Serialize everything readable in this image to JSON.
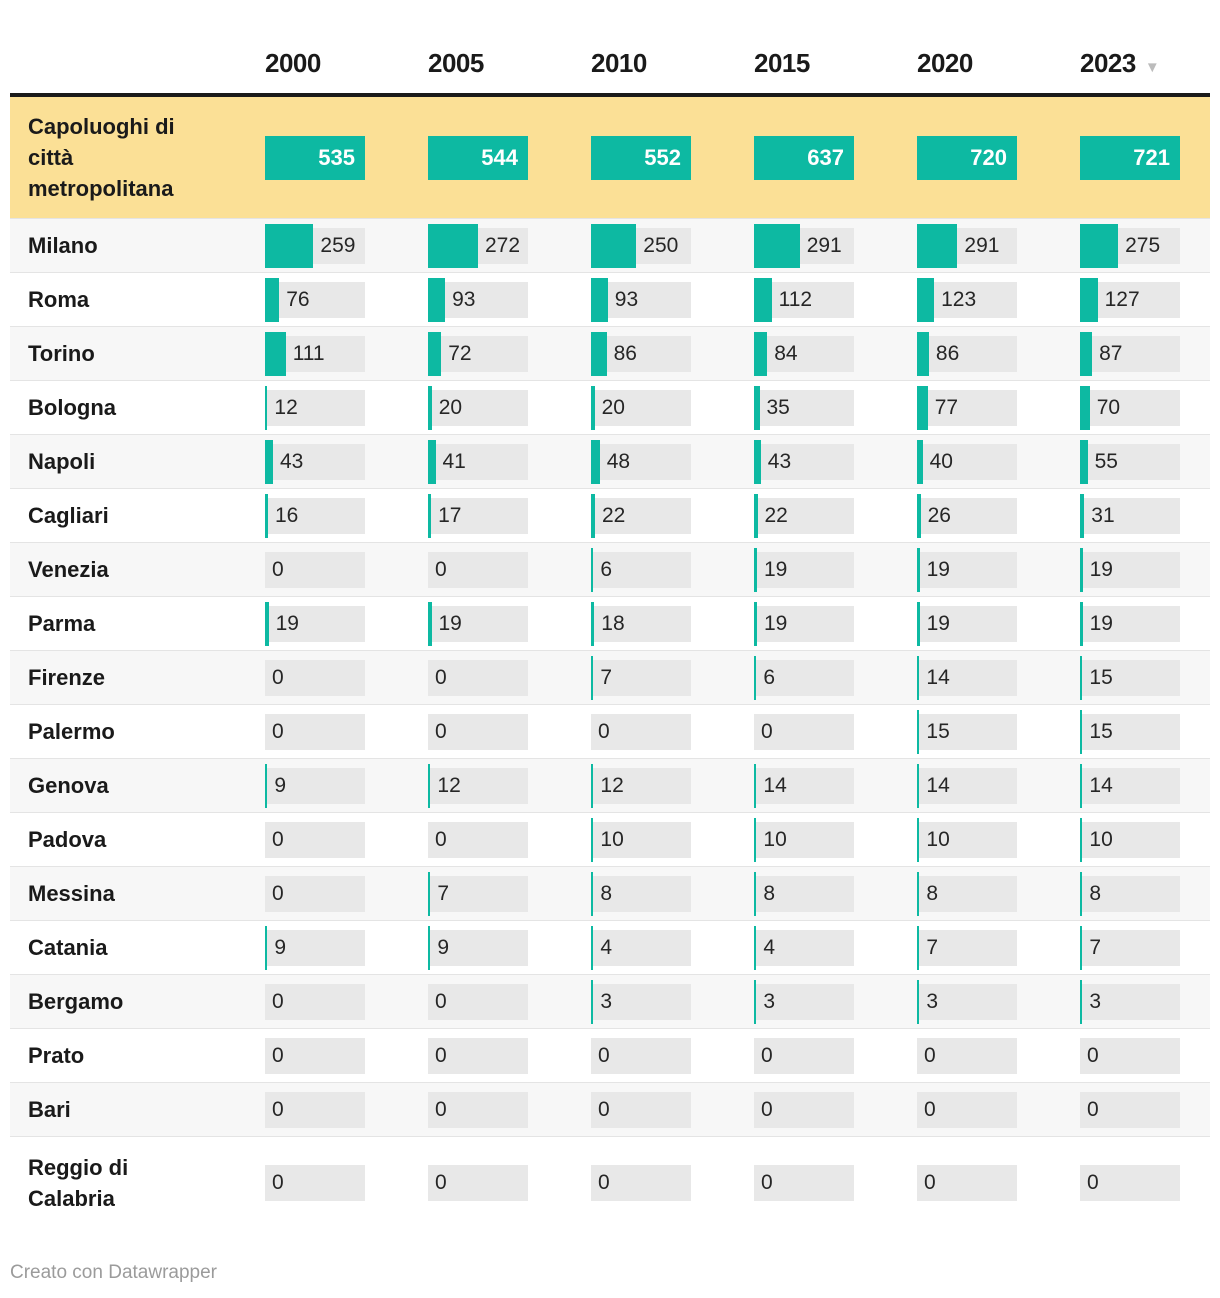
{
  "header": {
    "sort_icon": "▼",
    "sorted_column": "2023"
  },
  "chart_data": {
    "type": "table",
    "categories": [
      "2000",
      "2005",
      "2010",
      "2015",
      "2020",
      "2023"
    ],
    "bar_scaling": "per column, bar length relative to column max (total row value)",
    "legend_position": "none",
    "total": {
      "label": "Capoluoghi di città metropolitana",
      "values": [
        535,
        544,
        552,
        637,
        720,
        721
      ]
    },
    "series": [
      {
        "name": "Milano",
        "values": [
          259,
          272,
          250,
          291,
          291,
          275
        ]
      },
      {
        "name": "Roma",
        "values": [
          76,
          93,
          93,
          112,
          123,
          127
        ]
      },
      {
        "name": "Torino",
        "values": [
          111,
          72,
          86,
          84,
          86,
          87
        ]
      },
      {
        "name": "Bologna",
        "values": [
          12,
          20,
          20,
          35,
          77,
          70
        ]
      },
      {
        "name": "Napoli",
        "values": [
          43,
          41,
          48,
          43,
          40,
          55
        ]
      },
      {
        "name": "Cagliari",
        "values": [
          16,
          17,
          22,
          22,
          26,
          31
        ]
      },
      {
        "name": "Venezia",
        "values": [
          0,
          0,
          6,
          19,
          19,
          19
        ]
      },
      {
        "name": "Parma",
        "values": [
          19,
          19,
          18,
          19,
          19,
          19
        ]
      },
      {
        "name": "Firenze",
        "values": [
          0,
          0,
          7,
          6,
          14,
          15
        ]
      },
      {
        "name": "Palermo",
        "values": [
          0,
          0,
          0,
          0,
          15,
          15
        ]
      },
      {
        "name": "Genova",
        "values": [
          9,
          12,
          12,
          14,
          14,
          14
        ]
      },
      {
        "name": "Padova",
        "values": [
          0,
          0,
          10,
          10,
          10,
          10
        ]
      },
      {
        "name": "Messina",
        "values": [
          0,
          7,
          8,
          8,
          8,
          8
        ]
      },
      {
        "name": "Catania",
        "values": [
          9,
          9,
          4,
          4,
          7,
          7
        ]
      },
      {
        "name": "Bergamo",
        "values": [
          0,
          0,
          3,
          3,
          3,
          3
        ]
      },
      {
        "name": "Prato",
        "values": [
          0,
          0,
          0,
          0,
          0,
          0
        ]
      },
      {
        "name": "Bari",
        "values": [
          0,
          0,
          0,
          0,
          0,
          0
        ]
      },
      {
        "name": "Reggio di Calabria",
        "values": [
          0,
          0,
          0,
          0,
          0,
          0
        ]
      }
    ]
  },
  "footer": {
    "credit": "Creato con Datawrapper"
  },
  "colors": {
    "bar_teal": "#0db9a2",
    "bar_track": "#e8e8e8",
    "highlight_yellow": "#fbe096",
    "alt_row": "#f7f7f7",
    "header_rule": "#1a1a1a",
    "credit_gray": "#9b9b9b"
  }
}
